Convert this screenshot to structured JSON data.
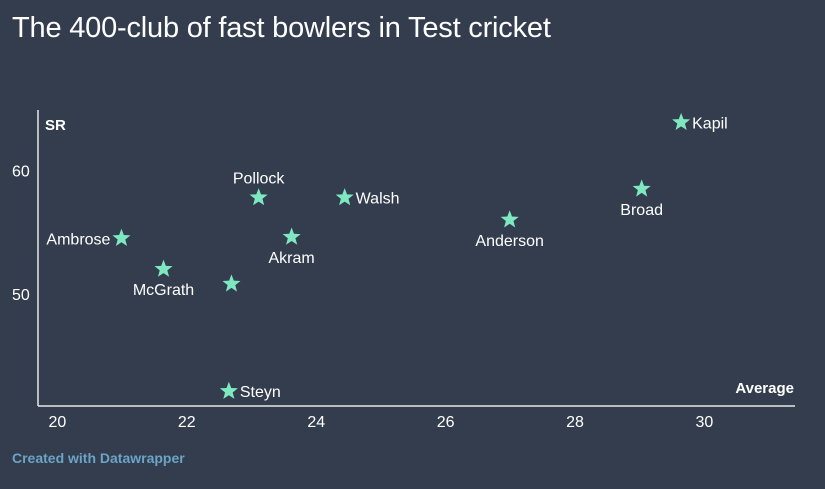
{
  "title": "The 400-club of fast bowlers in Test cricket",
  "credit": "Created with Datawrapper",
  "colors": {
    "background": "#333d4d",
    "marker": "#7ee8c0",
    "text": "#ffffff",
    "axis": "#e6e6e6",
    "credit": "#6aa4c6"
  },
  "chart_data": {
    "type": "scatter",
    "xlabel": "Average",
    "ylabel": "SR",
    "xlim": [
      19.7,
      31.4
    ],
    "ylim": [
      40.9,
      64.9
    ],
    "x_ticks": [
      20,
      22,
      24,
      26,
      28,
      30
    ],
    "y_ticks": [
      50,
      60
    ],
    "grid": false,
    "marker": "star",
    "points": [
      {
        "label": "Kapil",
        "x": 29.64,
        "y": 63.9,
        "label_pos": "right"
      },
      {
        "label": "Broad",
        "x": 29.03,
        "y": 58.5,
        "label_pos": "below"
      },
      {
        "label": "Anderson",
        "x": 26.99,
        "y": 56.0,
        "label_pos": "below"
      },
      {
        "label": "Walsh",
        "x": 24.44,
        "y": 57.8,
        "label_pos": "right"
      },
      {
        "label": "Pollock",
        "x": 23.11,
        "y": 57.8,
        "label_pos": "above"
      },
      {
        "label": "Akram",
        "x": 23.62,
        "y": 54.6,
        "label_pos": "below"
      },
      {
        "label": "Ambrose",
        "x": 20.99,
        "y": 54.5,
        "label_pos": "left"
      },
      {
        "label": "McGrath",
        "x": 21.64,
        "y": 52.0,
        "label_pos": "below"
      },
      {
        "label": "",
        "x": 22.69,
        "y": 50.8,
        "label_pos": "none"
      },
      {
        "label": "Steyn",
        "x": 22.65,
        "y": 42.1,
        "label_pos": "right"
      }
    ]
  }
}
